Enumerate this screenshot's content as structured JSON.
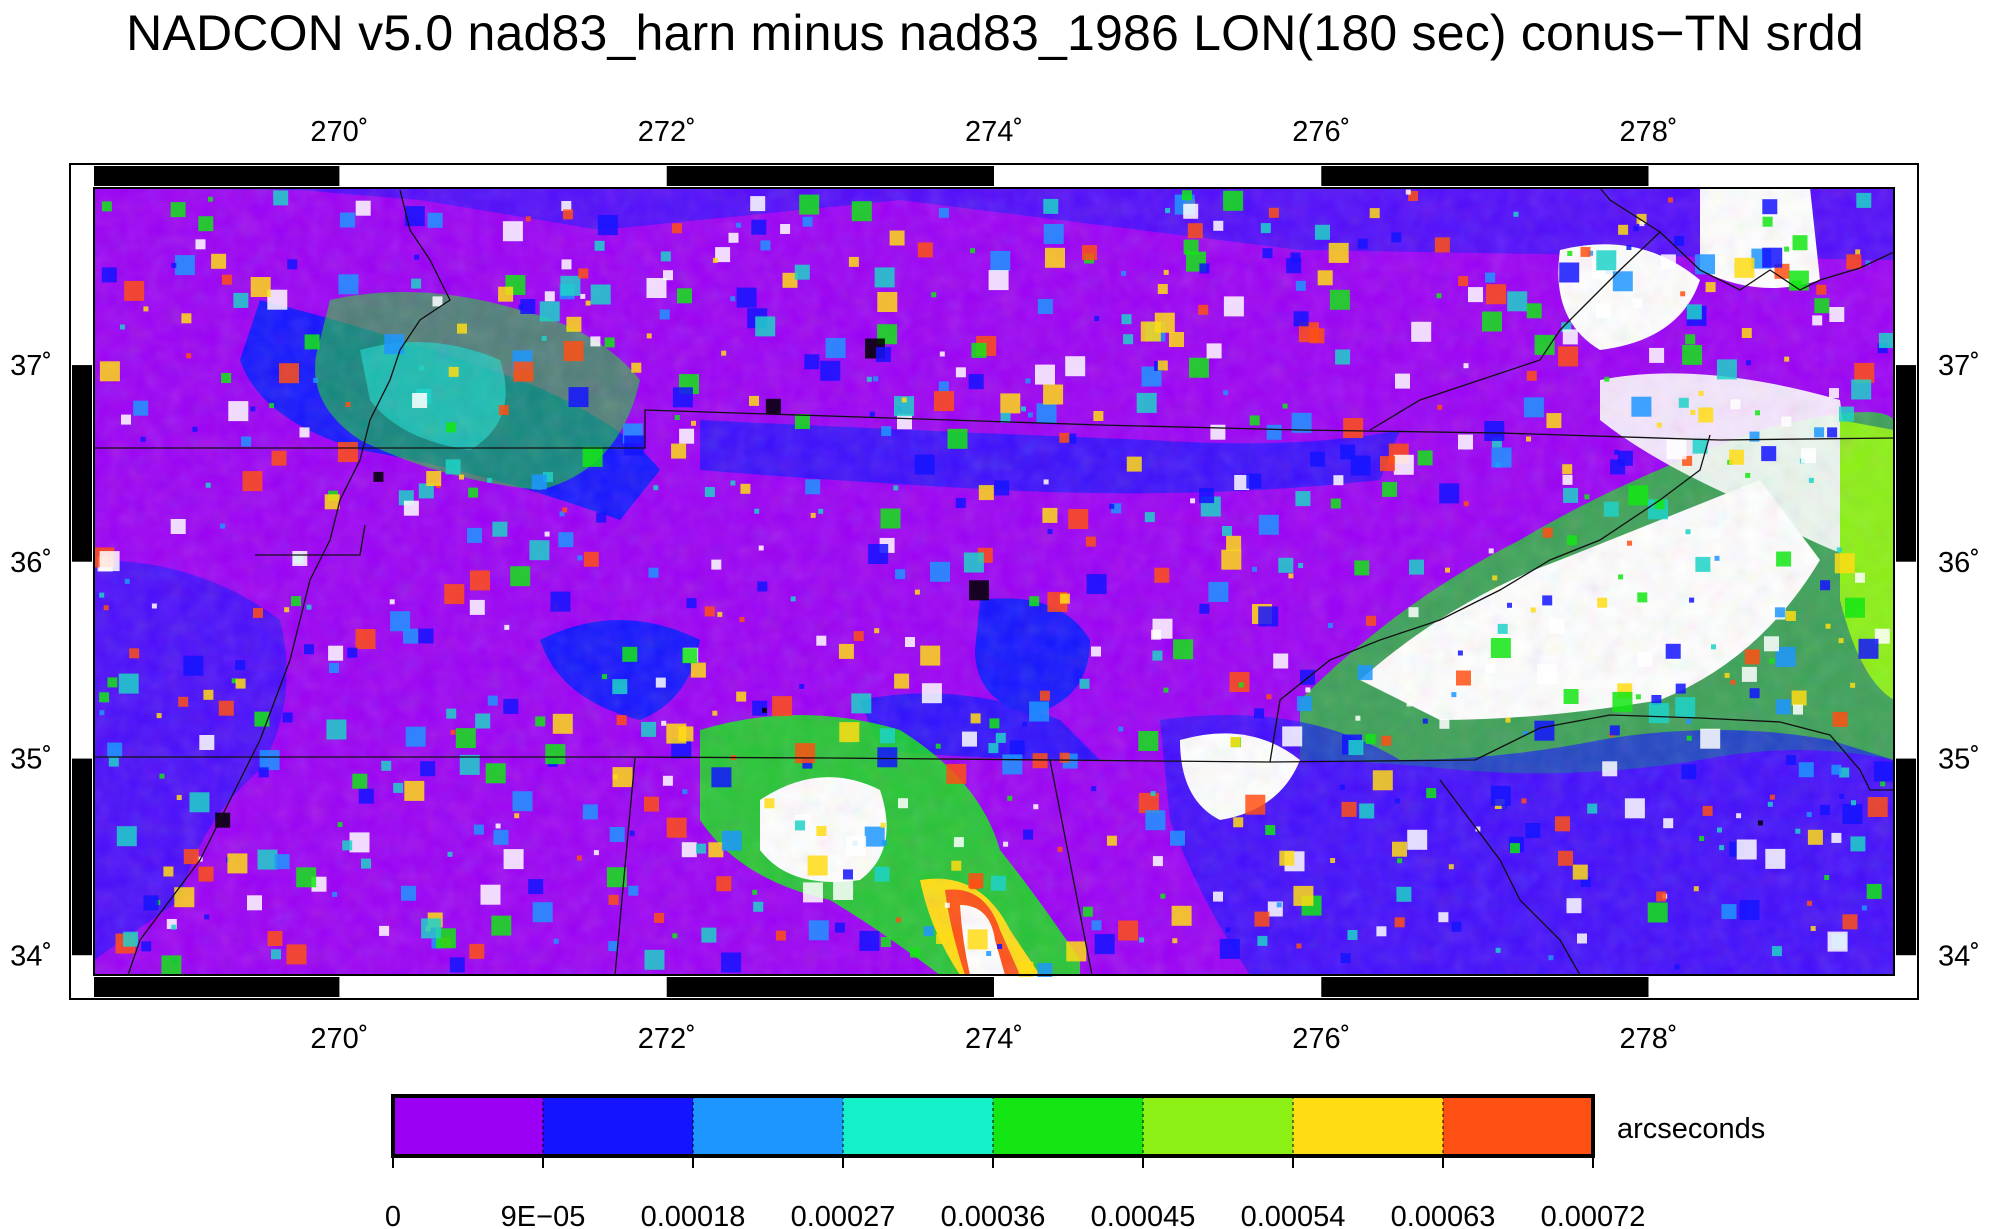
{
  "title": "NADCON v5.0 nad83_harn minus nad83_1986 LON(180 sec) conus−TN srdd",
  "map": {
    "lon_range": [
      268.5,
      279.5
    ],
    "lat_range": [
      33.9,
      37.9
    ],
    "top_ticks": [
      "270˚",
      "272˚",
      "274˚",
      "276˚",
      "278˚"
    ],
    "bottom_ticks": [
      "270˚",
      "272˚",
      "274˚",
      "276˚",
      "278˚"
    ],
    "left_ticks": [
      "37˚",
      "36˚",
      "35˚",
      "34˚"
    ],
    "right_ticks": [
      "37˚",
      "36˚",
      "35˚",
      "34˚"
    ],
    "lon_tick_values": [
      270,
      272,
      274,
      276,
      278
    ],
    "lat_tick_values": [
      37,
      36,
      35,
      34
    ],
    "features": [
      "state boundaries",
      "Tennessee region"
    ]
  },
  "colorbar": {
    "units": "arcseconds",
    "labels": [
      "0",
      "9E−05",
      "0.00018",
      "0.00027",
      "0.00036",
      "0.00045",
      "0.00054",
      "0.00063",
      "0.00072"
    ],
    "colors": [
      "#9b00f5",
      "#1414ff",
      "#1e96ff",
      "#14f0c8",
      "#14e614",
      "#8cf014",
      "#ffdc14",
      "#ff5014"
    ]
  },
  "chart_data": {
    "type": "heatmap",
    "title": "NADCON v5.0 nad83_harn minus nad83_1986 LON(180 sec) conus−TN srdd",
    "xlabel": "",
    "ylabel": "",
    "x_ticks": [
      270,
      272,
      274,
      276,
      278
    ],
    "y_ticks": [
      34,
      35,
      36,
      37
    ],
    "xlim": [
      268.5,
      279.5
    ],
    "ylim": [
      33.9,
      37.9
    ],
    "color_scale": [
      0,
      9e-05,
      0.00018,
      0.00027,
      0.00036,
      0.00045,
      0.00054,
      0.00063,
      0.00072
    ],
    "units": "arcseconds"
  }
}
